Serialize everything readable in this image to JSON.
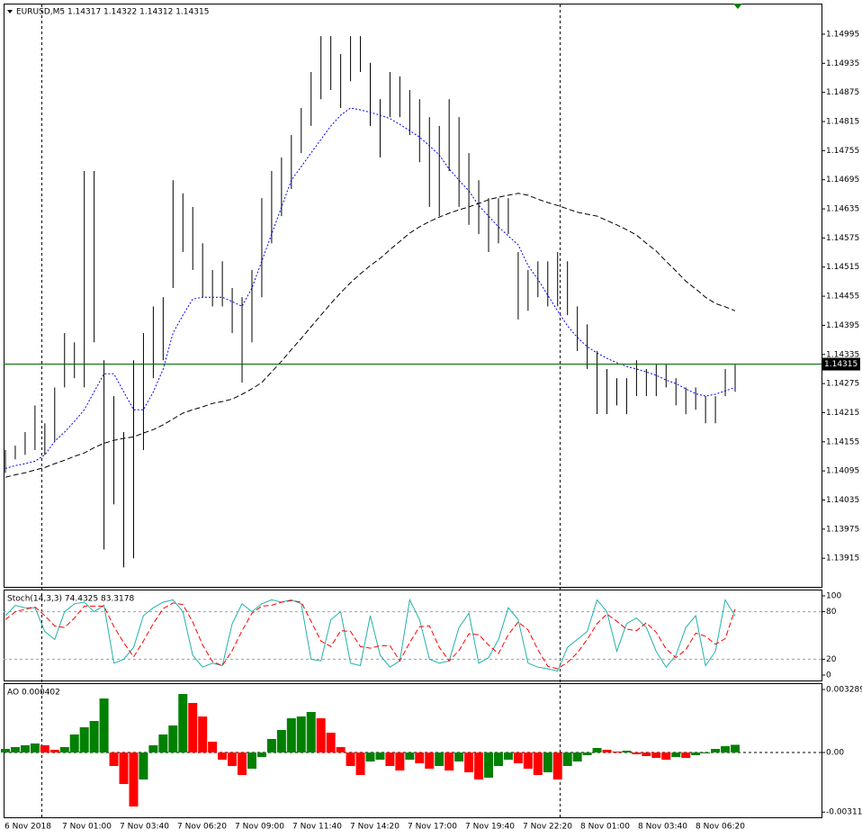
{
  "chart_data": [
    {
      "type": "ohlc",
      "title": "EURUSD,M5  1.14317 1.14322 1.14312 1.14315",
      "color": "#000000",
      "high": [
        1.14138,
        1.14147,
        1.14175,
        1.1423,
        1.14193,
        1.14267,
        1.14379,
        1.1436,
        1.14713,
        1.14713,
        1.14323,
        1.14249,
        1.14175,
        1.14323,
        1.14379,
        1.14434,
        1.14453,
        1.14694,
        1.14667,
        1.14639,
        1.14564,
        1.14509,
        1.14527,
        1.14472,
        1.14453,
        1.14509,
        1.14657,
        1.14713,
        1.14741,
        1.14787,
        1.14843,
        1.14917,
        1.14991,
        1.14991,
        1.14954,
        1.14991,
        1.14991,
        1.14936,
        1.14861,
        1.14917,
        1.14908,
        1.1488,
        1.14861,
        1.14824,
        1.14806,
        1.14861,
        1.14824,
        1.1475,
        1.14694,
        1.14657,
        1.14657,
        1.14657,
        1.14546,
        1.14509,
        1.14527,
        1.14527,
        1.14546,
        1.14527,
        1.14434,
        1.14397,
        1.14342,
        1.14305,
        1.14286,
        1.14286,
        1.14323,
        1.14305,
        1.14314,
        1.14314,
        1.14286,
        1.14267,
        1.14267,
        1.14249,
        1.14249,
        1.14305,
        1.14314
      ],
      "low": [
        1.14091,
        1.14119,
        1.14128,
        1.14138,
        1.14128,
        1.14156,
        1.14267,
        1.14286,
        1.14267,
        1.1436,
        1.13933,
        1.14026,
        1.13896,
        1.13915,
        1.14138,
        1.14286,
        1.14323,
        1.14472,
        1.14546,
        1.14509,
        1.14453,
        1.14434,
        1.14434,
        1.14379,
        1.14277,
        1.1436,
        1.14453,
        1.14564,
        1.1462,
        1.14676,
        1.1475,
        1.14806,
        1.14861,
        1.1488,
        1.14843,
        1.14898,
        1.14917,
        1.14806,
        1.14741,
        1.14824,
        1.14824,
        1.14787,
        1.14731,
        1.14639,
        1.1462,
        1.14713,
        1.14639,
        1.14602,
        1.14583,
        1.14546,
        1.14564,
        1.14583,
        1.14407,
        1.14425,
        1.14453,
        1.14434,
        1.14434,
        1.14416,
        1.14342,
        1.14305,
        1.14212,
        1.14212,
        1.1423,
        1.14212,
        1.14249,
        1.14249,
        1.14249,
        1.14267,
        1.1423,
        1.14212,
        1.14221,
        1.14193,
        1.14193,
        1.14249,
        1.14258
      ],
      "lines": [
        {
          "color": "#0000ff",
          "style": "dotted",
          "values": [
            1.141,
            1.14106,
            1.1411,
            1.14115,
            1.14128,
            1.14156,
            1.14175,
            1.14197,
            1.14221,
            1.14258,
            1.14295,
            1.14295,
            1.14258,
            1.14221,
            1.14221,
            1.14258,
            1.14305,
            1.14379,
            1.14416,
            1.14449,
            1.14453,
            1.14453,
            1.14453,
            1.14444,
            1.14434,
            1.14472,
            1.14527,
            1.14583,
            1.14639,
            1.14694,
            1.14722,
            1.1475,
            1.14778,
            1.14806,
            1.14828,
            1.14843,
            1.14839,
            1.14834,
            1.14828,
            1.14821,
            1.14809,
            1.14796,
            1.14783,
            1.14765,
            1.14746,
            1.14717,
            1.14694,
            1.14672,
            1.14642,
            1.1462,
            1.14598,
            1.14579,
            1.14561,
            1.14518,
            1.1449,
            1.14457,
            1.14425,
            1.14394,
            1.1437,
            1.14351,
            1.14338,
            1.14327,
            1.14318,
            1.1431,
            1.14305,
            1.14299,
            1.14292,
            1.14282,
            1.14275,
            1.14264,
            1.14254,
            1.14249,
            1.14253,
            1.1426,
            1.14267
          ]
        },
        {
          "color": "#000000",
          "style": "dashed",
          "values": [
            1.14082,
            1.14087,
            1.14091,
            1.14097,
            1.14102,
            1.1411,
            1.14117,
            1.14125,
            1.14132,
            1.14143,
            1.14152,
            1.14158,
            1.14162,
            1.14165,
            1.14173,
            1.1418,
            1.1419,
            1.14202,
            1.14214,
            1.14221,
            1.14227,
            1.14234,
            1.14238,
            1.14243,
            1.14253,
            1.14264,
            1.14277,
            1.14299,
            1.14321,
            1.14345,
            1.14368,
            1.14392,
            1.14416,
            1.1444,
            1.14462,
            1.14483,
            1.14501,
            1.14518,
            1.14533,
            1.14551,
            1.14568,
            1.14585,
            1.14598,
            1.14609,
            1.14618,
            1.14626,
            1.14633,
            1.14639,
            1.14646,
            1.14654,
            1.14659,
            1.14663,
            1.14667,
            1.14663,
            1.14655,
            1.14648,
            1.14642,
            1.14635,
            1.14628,
            1.14624,
            1.1462,
            1.14611,
            1.14602,
            1.14592,
            1.14581,
            1.14564,
            1.14548,
            1.14527,
            1.14507,
            1.14486,
            1.1447,
            1.14453,
            1.1444,
            1.14433,
            1.14425
          ]
        }
      ],
      "current_price": 1.14315,
      "current_color": "#006400",
      "ylim": [
        1.13856,
        1.15058
      ],
      "yticks": [
        1.14995,
        1.14935,
        1.14875,
        1.14815,
        1.14755,
        1.14695,
        1.14635,
        1.14575,
        1.14515,
        1.14455,
        1.14395,
        1.14335,
        1.14275,
        1.14215,
        1.14155,
        1.14095,
        1.14035,
        1.13975,
        1.13915
      ]
    },
    {
      "type": "line",
      "title": "Stoch(14,3,3) 74.4325 83.3178",
      "series": [
        {
          "color": "#20b2aa",
          "style": "solid",
          "values": [
            75,
            88,
            85,
            85,
            55,
            45,
            80,
            90,
            92,
            80,
            88,
            15,
            20,
            35,
            75,
            85,
            92,
            95,
            80,
            25,
            10,
            15,
            12,
            65,
            90,
            80,
            90,
            95,
            92,
            95,
            90,
            20,
            18,
            70,
            80,
            15,
            12,
            75,
            25,
            10,
            18,
            95,
            70,
            20,
            15,
            18,
            60,
            78,
            15,
            22,
            45,
            85,
            70,
            15,
            10,
            8,
            5,
            35,
            45,
            55,
            95,
            80,
            30,
            65,
            72,
            60,
            30,
            10,
            25,
            60,
            75,
            12,
            30,
            95,
            74.4325
          ]
        },
        {
          "color": "#ff0000",
          "style": "dashed",
          "values": [
            70,
            80,
            83,
            86,
            75,
            62,
            60,
            72,
            87,
            87,
            87,
            61,
            41,
            23,
            43,
            65,
            84,
            91,
            89,
            67,
            38,
            17,
            12,
            31,
            56,
            78,
            87,
            88,
            92,
            94,
            92,
            68,
            43,
            36,
            56,
            55,
            36,
            34,
            37,
            37,
            18,
            41,
            61,
            62,
            35,
            18,
            31,
            52,
            51,
            38,
            27,
            51,
            67,
            57,
            32,
            11,
            8,
            16,
            28,
            45,
            65,
            77,
            68,
            58,
            56,
            66,
            54,
            33,
            22,
            32,
            53,
            49,
            39,
            46,
            83.3178
          ]
        }
      ],
      "levels": [
        20,
        80
      ],
      "level_color": "#a0a0a0",
      "ylim": [
        -6.8,
        106.8
      ],
      "yticks": [
        0,
        20,
        80,
        100
      ]
    },
    {
      "type": "column",
      "title": "AO 0.000402",
      "up_color": "#008000",
      "down_color": "#ff0000",
      "values": [
        0.000188,
        0.000282,
        0.000376,
        0.00047,
        0.000376,
        0.000141,
        0.000282,
        0.00094,
        0.001316,
        0.001645,
        0.002819,
        -0.000705,
        -0.001645,
        -0.002819,
        -0.00141,
        0.000376,
        0.00094,
        0.00141,
        0.003054,
        0.002584,
        0.00188,
        0.000564,
        -0.000376,
        -0.000705,
        -0.001175,
        -0.000846,
        -0.000235,
        0.000705,
        0.001175,
        0.001786,
        0.00188,
        0.002115,
        0.001786,
        0.001034,
        0.000282,
        -0.000705,
        -0.001175,
        -0.00047,
        -0.000376,
        -0.000705,
        -0.00094,
        -0.000376,
        -0.000564,
        -0.000846,
        -0.000705,
        -0.00094,
        -0.00047,
        -0.001034,
        -0.00141,
        -0.001316,
        -0.000705,
        -0.000376,
        -0.000564,
        -0.000846,
        -0.001175,
        -0.001034,
        -0.00141,
        -0.000705,
        -0.00047,
        -0.000141,
        0.000235,
        0.000141,
        4.7e-05,
        9.4e-05,
        -9.4e-05,
        -0.000188,
        -0.000282,
        -0.000376,
        -0.000235,
        -0.000282,
        -0.000141,
        -4.7e-05,
        0.000188,
        0.000329,
        0.000402
      ],
      "ylim": [
        -0.003383,
        0.003571
      ],
      "yticks": [
        0.003289,
        {
          "value": 0,
          "label": "0.00"
        },
        -0.003112
      ],
      "x_labels": [
        "6 Nov 2018",
        "7 Nov 01:00",
        "7 Nov 03:40",
        "7 Nov 06:20",
        "7 Nov 09:00",
        "7 Nov 11:40",
        "7 Nov 14:20",
        "7 Nov 17:00",
        "7 Nov 19:40",
        "7 Nov 22:20",
        "8 Nov 01:00",
        "8 Nov 03:40",
        "8 Nov 06:20"
      ]
    }
  ]
}
